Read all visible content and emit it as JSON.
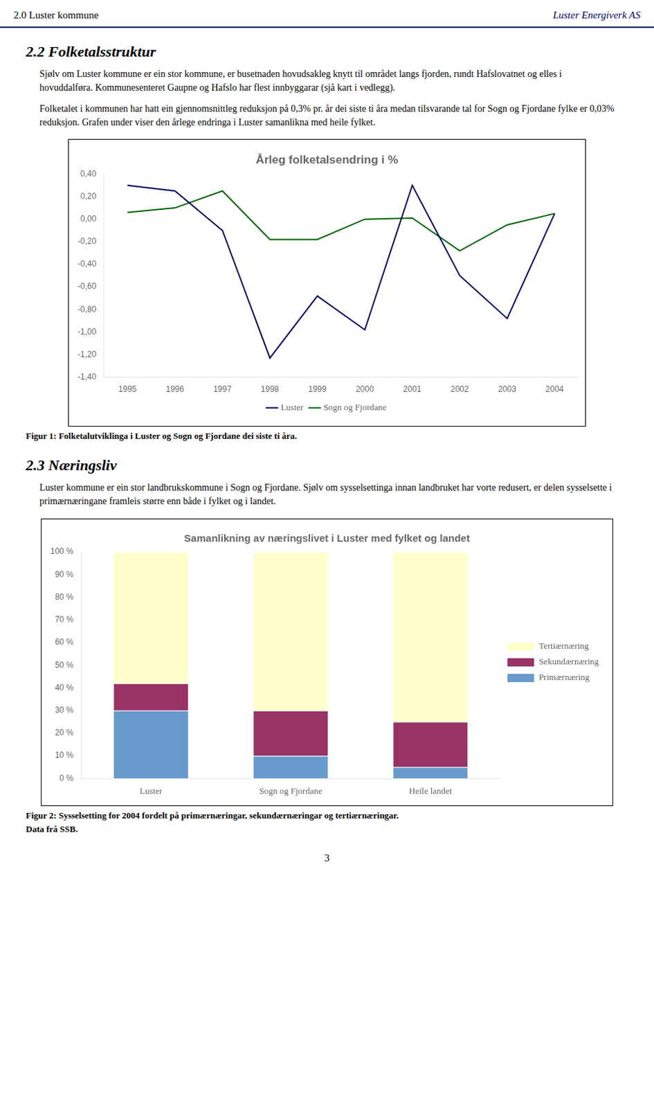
{
  "header_left": "2.0 Luster kommune",
  "header_right": "Luster Energiverk AS",
  "header_color": "#000066",
  "section1": {
    "title": "2.2 Folketalsstruktur",
    "paragraphs": [
      "Sjølv om Luster kommune er ein stor kommune, er busetnaden hovudsakleg knytt til området langs fjorden, rundt Hafslovatnet og elles i hovuddalføra. Kommunesenteret Gaupne og Hafslo har flest innbyggarar (sjå kart i vedlegg).",
      "Folketalet i kommunen har hatt ein gjennomsnittleg reduksjon på 0,3% pr. år dei siste ti åra medan tilsvarande tal for Sogn og Fjordane fylke er 0,03% reduksjon. Grafen under viser den årlege endringa i Luster samanlikna med heile fylket."
    ]
  },
  "section2": {
    "title": "2.3 Næringsliv",
    "paragraphs": [
      "Luster kommune er ein stor landbrukskommune i Sogn og Fjordane. Sjølv om sysselsettinga innan landbruket har vorte redusert, er delen sysselsette i primærnæringane framleis større enn både i fylket og i landet."
    ]
  },
  "page_number": "3",
  "chart_data": [
    {
      "type": "line",
      "title": "Årleg folketalsendring i %",
      "x": [
        1995,
        1996,
        1997,
        1998,
        1999,
        2000,
        2001,
        2002,
        2003,
        2004
      ],
      "series": [
        {
          "name": "Luster",
          "color": "#000066",
          "values": [
            0.3,
            0.25,
            -0.1,
            -1.23,
            -0.68,
            -0.98,
            0.3,
            -0.5,
            -0.88,
            0.05
          ]
        },
        {
          "name": "Sogn og Fjordane",
          "color": "#006600",
          "values": [
            0.06,
            0.1,
            0.25,
            -0.18,
            -0.18,
            0.0,
            0.01,
            -0.28,
            -0.05,
            0.05
          ]
        }
      ],
      "xlim": [
        1994.5,
        2004.5
      ],
      "xticks": [
        1995,
        1996,
        1997,
        1998,
        1999,
        2000,
        2001,
        2002,
        2003,
        2004
      ],
      "ylim": [
        -1.4,
        0.4
      ],
      "yticks": [
        {
          "value": 0.4,
          "label": "0,40"
        },
        {
          "value": 0.2,
          "label": "0,20"
        },
        {
          "value": 0.0,
          "label": "0,00"
        },
        {
          "value": -0.2,
          "label": "-0,20"
        },
        {
          "value": -0.4,
          "label": "-0,40"
        },
        {
          "value": -0.6,
          "label": "-0,60"
        },
        {
          "value": -0.8,
          "label": "-0,80"
        },
        {
          "value": -1.0,
          "label": "-1,00"
        },
        {
          "value": -1.2,
          "label": "-1,20"
        },
        {
          "value": -1.4,
          "label": "-1,40"
        }
      ],
      "grid": false,
      "legend": "bottom",
      "caption": [
        "Figur 1: Folketalutviklinga i Luster og Sogn og Fjordane dei siste ti åra."
      ]
    },
    {
      "type": "bar",
      "title": "Samanlikning av næringslivet i Luster med fylket og landet",
      "categories": [
        "Luster",
        "Sogn og Fjordane",
        "Heile landet"
      ],
      "series": [
        {
          "name": "Primærnæring",
          "color": "#6699cc",
          "values": [
            30,
            10,
            5
          ]
        },
        {
          "name": "Sekundærnæring",
          "color": "#993366",
          "values": [
            12,
            20,
            20
          ]
        },
        {
          "name": "Tertiærnæring",
          "color": "#ffffcc",
          "values": [
            58,
            70,
            75
          ]
        }
      ],
      "stacked": true,
      "ylim": [
        0,
        100
      ],
      "yticks": [
        {
          "value": 0,
          "label": "0 %"
        },
        {
          "value": 10,
          "label": "10 %"
        },
        {
          "value": 20,
          "label": "20 %"
        },
        {
          "value": 30,
          "label": "30 %"
        },
        {
          "value": 40,
          "label": "40 %"
        },
        {
          "value": 50,
          "label": "50 %"
        },
        {
          "value": 60,
          "label": "60 %"
        },
        {
          "value": 70,
          "label": "70 %"
        },
        {
          "value": 80,
          "label": "80 %"
        },
        {
          "value": 90,
          "label": "90 %"
        },
        {
          "value": 100,
          "label": "100 %"
        }
      ],
      "grid": false,
      "legend": "right",
      "caption": [
        "Figur 2: Sysselsetting for 2004 fordelt på primærnæringar, sekundærnæringar og tertiærnæringar.",
        "Data frå SSB."
      ]
    }
  ]
}
